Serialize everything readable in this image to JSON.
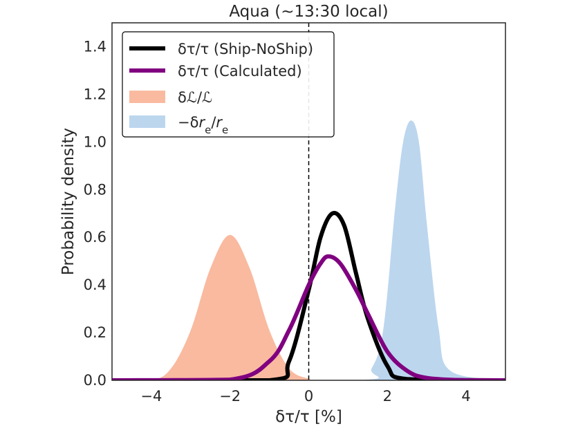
{
  "chart_data": {
    "type": "area",
    "title": "Aqua (~13:30 local)",
    "xlabel": "δτ/τ [%]",
    "ylabel": "Probability density",
    "xlim": [
      -5,
      5
    ],
    "ylim": [
      0,
      1.5
    ],
    "xticks": [
      -4,
      -2,
      0,
      2,
      4
    ],
    "xtick_labels": [
      "−4",
      "−2",
      "0",
      "2",
      "4"
    ],
    "yticks": [
      0.0,
      0.2,
      0.4,
      0.6,
      0.8,
      1.0,
      1.2,
      1.4
    ],
    "ytick_labels": [
      "0.0",
      "0.2",
      "0.4",
      "0.6",
      "0.8",
      "1.0",
      "1.2",
      "1.4"
    ],
    "grid": false,
    "legend_position": "top-left",
    "vline": {
      "x": 0,
      "style": "dashed"
    },
    "series": [
      {
        "name": "δτ/τ (Ship-NoShip)",
        "kind": "line",
        "color": "#000000",
        "x": [
          -5.0,
          -1.0,
          -0.5,
          0.0,
          0.3,
          0.6,
          0.9,
          1.2,
          1.5,
          2.0,
          2.5,
          5.0
        ],
        "y": [
          0.0,
          0.0,
          0.08,
          0.38,
          0.6,
          0.7,
          0.65,
          0.45,
          0.26,
          0.06,
          0.005,
          0.0
        ]
      },
      {
        "name": "δτ/τ (Calculated)",
        "kind": "line",
        "color": "#800080",
        "x": [
          -5.0,
          -2.0,
          -1.0,
          -0.5,
          0.0,
          0.3,
          0.5,
          0.8,
          1.2,
          1.5,
          2.0,
          2.5,
          3.0,
          4.0,
          5.0
        ],
        "y": [
          0.0,
          0.003,
          0.08,
          0.21,
          0.4,
          0.49,
          0.52,
          0.49,
          0.38,
          0.28,
          0.12,
          0.04,
          0.01,
          0.0,
          0.0
        ]
      },
      {
        "name": "δℒ/ℒ",
        "kind": "area",
        "color": "#f7a380",
        "x": [
          -5.0,
          -4.0,
          -3.5,
          -3.0,
          -2.5,
          -2.0,
          -1.5,
          -1.0,
          -0.5,
          0.0,
          0.5,
          5.0
        ],
        "y": [
          0.0,
          0.0,
          0.05,
          0.21,
          0.47,
          0.61,
          0.47,
          0.21,
          0.05,
          0.007,
          0.0,
          0.0
        ]
      },
      {
        "name": "−δr_e/r_e",
        "kind": "area",
        "color": "#a6c8e8",
        "x": [
          -5.0,
          1.2,
          1.6,
          1.9,
          2.2,
          2.4,
          2.6,
          2.8,
          3.0,
          3.3,
          3.6,
          5.0
        ],
        "y": [
          0.0,
          0.0,
          0.05,
          0.22,
          0.73,
          1.0,
          1.09,
          1.0,
          0.66,
          0.22,
          0.04,
          0.0
        ]
      }
    ]
  },
  "legend": {
    "items": [
      {
        "html": "δτ/τ (Ship-NoShip)"
      },
      {
        "html": "δτ/τ (Calculated)"
      },
      {
        "html": "δℒ/ℒ"
      },
      {
        "html": "−δr_e/r_e"
      }
    ]
  }
}
